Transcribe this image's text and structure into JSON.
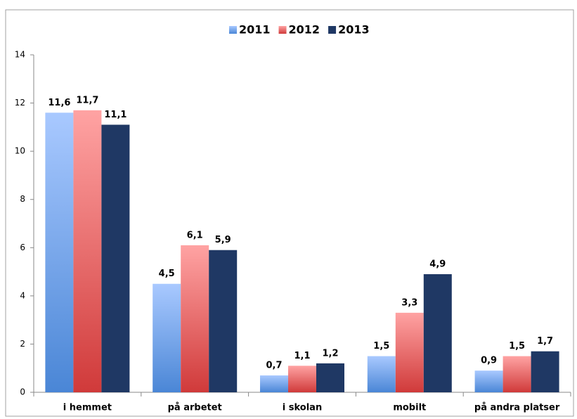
{
  "chart_data": {
    "type": "bar",
    "categories": [
      "i hemmet",
      "på arbetet",
      "i skolan",
      "mobilt",
      "på andra platser"
    ],
    "series": [
      {
        "name": "2011",
        "color": "#4a86d6",
        "gradient_top": "#a9c9ff",
        "values": [
          11.6,
          4.5,
          0.7,
          1.5,
          0.9
        ],
        "value_labels": [
          "11,6",
          "4,5",
          "0,7",
          "1,5",
          "0,9"
        ]
      },
      {
        "name": "2012",
        "color": "#d03a3a",
        "gradient_top": "#ffa3a3",
        "values": [
          11.7,
          6.1,
          1.1,
          3.3,
          1.5
        ],
        "value_labels": [
          "11,7",
          "6,1",
          "1,1",
          "3,3",
          "1,5"
        ]
      },
      {
        "name": "2013",
        "color": "#1f3864",
        "gradient_top": "#1f3864",
        "values": [
          11.1,
          5.9,
          1.2,
          4.9,
          1.7
        ],
        "value_labels": [
          "11,1",
          "5,9",
          "1,2",
          "4,9",
          "1,7"
        ]
      }
    ],
    "ylim": [
      0,
      14
    ],
    "yticks": [
      0,
      2,
      4,
      6,
      8,
      10,
      12,
      14
    ],
    "grid": false,
    "legend": "top"
  }
}
